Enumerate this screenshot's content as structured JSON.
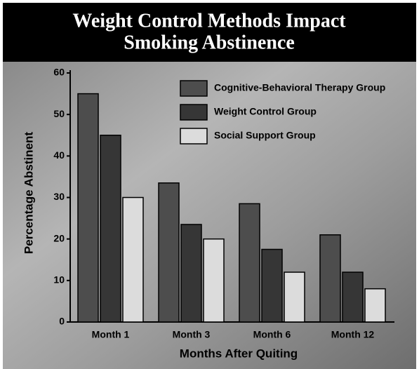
{
  "chart_data": {
    "type": "bar",
    "title": [
      "Weight Control Methods Impact",
      "Smoking Abstinence"
    ],
    "x_label": "Months After Quiting",
    "y_label": "Percentage Abstinent",
    "categories": [
      "Month 1",
      "Month 3",
      "Month 6",
      "Month 12"
    ],
    "series": [
      {
        "name": "Cognitive-Behavioral Therapy Group",
        "color": "#4d4d4d",
        "values": [
          55,
          33.5,
          28.5,
          21
        ]
      },
      {
        "name": "Weight Control Group",
        "color": "#363636",
        "values": [
          45,
          23.5,
          17.5,
          12
        ]
      },
      {
        "name": "Social Support Group",
        "color": "#dcdcdc",
        "values": [
          30,
          20,
          12,
          8
        ]
      }
    ],
    "ylim": [
      0,
      60
    ],
    "yticks": [
      0,
      10,
      20,
      30,
      40,
      50,
      60
    ],
    "legend": "upper right"
  }
}
